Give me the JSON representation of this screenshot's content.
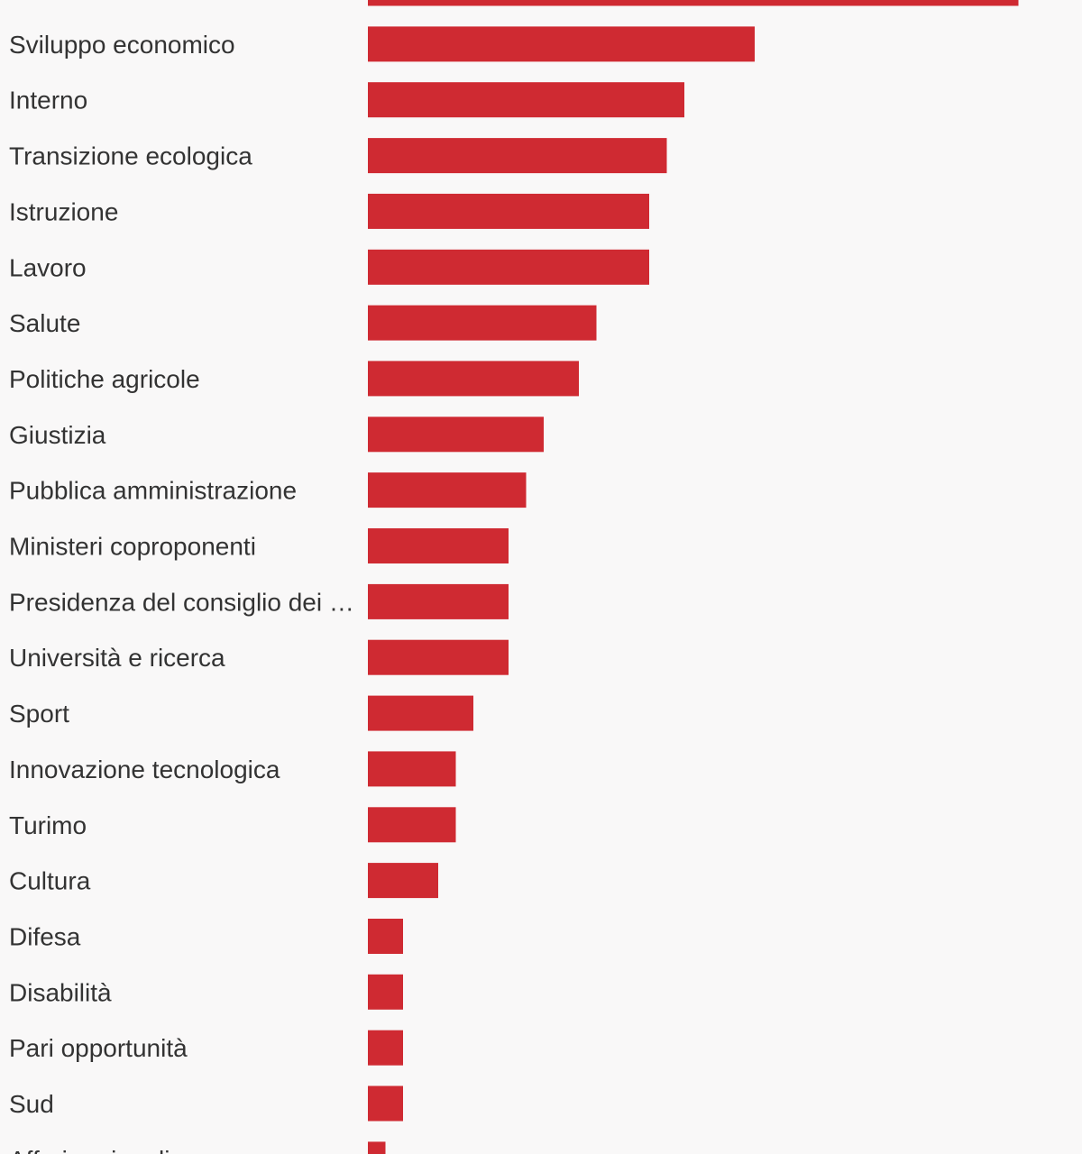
{
  "chart_data": {
    "type": "bar",
    "orientation": "horizontal",
    "title": "",
    "xlabel": "",
    "ylabel": "",
    "grid": false,
    "legend": "none",
    "bar_color": "#cf2a32",
    "xlim": [
      0,
      38
    ],
    "categories": [
      "",
      "Sviluppo economico",
      "Interno",
      "Transizione ecologica",
      "Istruzione",
      "Lavoro",
      "Salute",
      "Politiche agricole",
      "Giustizia",
      "Pubblica amministrazione",
      "Ministeri coproponenti",
      "Presidenza del consiglio dei …",
      "Università e ricerca",
      "Sport",
      "Innovazione tecnologica",
      "Turimo",
      "Cultura",
      "Difesa",
      "Disabilità",
      "Pari opportunità",
      "Sud",
      "Affari regionali"
    ],
    "values": [
      37,
      22,
      18,
      17,
      16,
      16,
      13,
      12,
      10,
      9,
      8,
      8,
      8,
      6,
      5,
      5,
      4,
      2,
      2,
      2,
      2,
      1
    ]
  }
}
